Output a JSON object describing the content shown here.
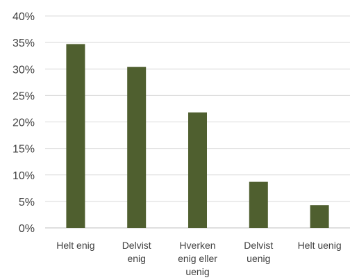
{
  "chart_data": {
    "type": "bar",
    "categories": [
      [
        "Helt enig"
      ],
      [
        "Delvist",
        "enig"
      ],
      [
        "Hverken",
        "enig eller",
        "uenig"
      ],
      [
        "Delvist",
        "uenig"
      ],
      [
        "Helt uenig"
      ]
    ],
    "values": [
      34.7,
      30.4,
      21.8,
      8.7,
      4.3
    ],
    "ylim": [
      0,
      40
    ],
    "yticks": [
      "0%",
      "5%",
      "10%",
      "15%",
      "20%",
      "25%",
      "30%",
      "35%",
      "40%"
    ],
    "grid": true,
    "legend": "none",
    "title": "",
    "xlabel": "",
    "ylabel": "",
    "bar_color": "#4f5f2f"
  }
}
